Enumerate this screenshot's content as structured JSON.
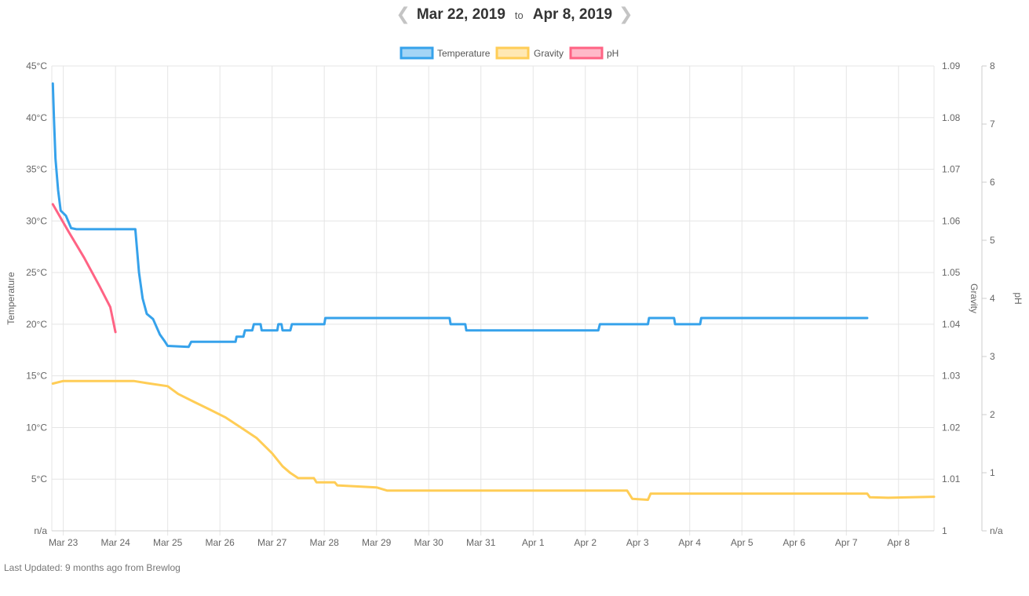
{
  "header": {
    "start_date": "Mar 22, 2019",
    "to_label": "to",
    "end_date": "Apr 8, 2019",
    "prev_icon": "chevron-left-icon",
    "next_icon": "chevron-right-icon"
  },
  "footer": {
    "last_updated": "Last Updated: 9 months ago from Brewlog"
  },
  "colors": {
    "temperature": "#36a2eb",
    "gravity": "#ffcd56",
    "ph": "#ff6384",
    "grid": "#e5e5e5"
  },
  "chart_data": {
    "type": "line",
    "legend": [
      "Temperature",
      "Gravity",
      "pH"
    ],
    "x_ticks": [
      {
        "label": "Mar 23",
        "day": 1
      },
      {
        "label": "Mar 24",
        "day": 2
      },
      {
        "label": "Mar 25",
        "day": 3
      },
      {
        "label": "Mar 26",
        "day": 4
      },
      {
        "label": "Mar 27",
        "day": 5
      },
      {
        "label": "Mar 28",
        "day": 6
      },
      {
        "label": "Mar 29",
        "day": 7
      },
      {
        "label": "Mar 30",
        "day": 8
      },
      {
        "label": "Mar 31",
        "day": 9
      },
      {
        "label": "Apr 1",
        "day": 10
      },
      {
        "label": "Apr 2",
        "day": 11
      },
      {
        "label": "Apr 3",
        "day": 12
      },
      {
        "label": "Apr 4",
        "day": 13
      },
      {
        "label": "Apr 5",
        "day": 14
      },
      {
        "label": "Apr 6",
        "day": 15
      },
      {
        "label": "Apr 7",
        "day": 16
      },
      {
        "label": "Apr 8",
        "day": 17
      }
    ],
    "x_range": [
      0.78,
      17.68
    ],
    "axes": {
      "temperature": {
        "label": "Temperature",
        "min": 0,
        "max": 45,
        "ticks": [
          "n/a",
          "5°C",
          "10°C",
          "15°C",
          "20°C",
          "25°C",
          "30°C",
          "35°C",
          "40°C",
          "45°C"
        ]
      },
      "gravity": {
        "label": "Gravity",
        "min": 1.0,
        "max": 1.09,
        "ticks": [
          "1",
          "1.01",
          "1.02",
          "1.03",
          "1.04",
          "1.05",
          "1.06",
          "1.07",
          "1.08",
          "1.09"
        ]
      },
      "ph": {
        "label": "pH",
        "min": 0,
        "max": 8,
        "ticks": [
          "n/a",
          "1",
          "2",
          "3",
          "4",
          "5",
          "6",
          "7",
          "8"
        ]
      }
    },
    "series": [
      {
        "name": "Temperature",
        "axis": "temperature",
        "points": [
          [
            0.8,
            43.3
          ],
          [
            0.82,
            40
          ],
          [
            0.85,
            36
          ],
          [
            0.9,
            33
          ],
          [
            0.95,
            31
          ],
          [
            1.05,
            30.5
          ],
          [
            1.15,
            29.3
          ],
          [
            1.25,
            29.2
          ],
          [
            2.0,
            29.2
          ],
          [
            2.38,
            29.2
          ],
          [
            2.45,
            25
          ],
          [
            2.52,
            22.5
          ],
          [
            2.6,
            21
          ],
          [
            2.72,
            20.5
          ],
          [
            2.85,
            19
          ],
          [
            2.95,
            18.3
          ],
          [
            3.0,
            17.9
          ],
          [
            3.4,
            17.8
          ],
          [
            3.45,
            18.3
          ],
          [
            4.3,
            18.3
          ],
          [
            4.32,
            18.8
          ],
          [
            4.45,
            18.8
          ],
          [
            4.48,
            19.4
          ],
          [
            4.62,
            19.4
          ],
          [
            4.65,
            20
          ],
          [
            4.78,
            20
          ],
          [
            4.8,
            19.4
          ],
          [
            5.1,
            19.4
          ],
          [
            5.12,
            20
          ],
          [
            5.18,
            20
          ],
          [
            5.2,
            19.4
          ],
          [
            5.35,
            19.4
          ],
          [
            5.38,
            20
          ],
          [
            6.0,
            20
          ],
          [
            6.02,
            20.6
          ],
          [
            8.4,
            20.6
          ],
          [
            8.42,
            20
          ],
          [
            8.7,
            20
          ],
          [
            8.72,
            19.4
          ],
          [
            11.25,
            19.4
          ],
          [
            11.28,
            20
          ],
          [
            12.2,
            20
          ],
          [
            12.22,
            20.6
          ],
          [
            12.7,
            20.6
          ],
          [
            12.72,
            20
          ],
          [
            13.2,
            20
          ],
          [
            13.22,
            20.6
          ],
          [
            16.4,
            20.6
          ]
        ]
      },
      {
        "name": "Gravity",
        "axis": "gravity",
        "points": [
          [
            0.8,
            1.0285
          ],
          [
            1.0,
            1.029
          ],
          [
            2.35,
            1.029
          ],
          [
            2.6,
            1.0286
          ],
          [
            3.0,
            1.028
          ],
          [
            3.2,
            1.0265
          ],
          [
            3.5,
            1.025
          ],
          [
            3.8,
            1.0235
          ],
          [
            4.1,
            1.022
          ],
          [
            4.4,
            1.02
          ],
          [
            4.7,
            1.018
          ],
          [
            5.0,
            1.015
          ],
          [
            5.2,
            1.0125
          ],
          [
            5.35,
            1.0112
          ],
          [
            5.5,
            1.0102
          ],
          [
            5.8,
            1.0102
          ],
          [
            5.85,
            1.0094
          ],
          [
            6.2,
            1.0094
          ],
          [
            6.25,
            1.0088
          ],
          [
            7.0,
            1.0084
          ],
          [
            7.2,
            1.0078
          ],
          [
            11.8,
            1.0078
          ],
          [
            11.9,
            1.0062
          ],
          [
            12.2,
            1.006
          ],
          [
            12.25,
            1.0072
          ],
          [
            16.4,
            1.0072
          ],
          [
            16.45,
            1.0065
          ],
          [
            16.8,
            1.0064
          ],
          [
            17.68,
            1.0066
          ]
        ]
      },
      {
        "name": "pH",
        "axis": "ph",
        "points": [
          [
            0.8,
            5.62
          ],
          [
            1.1,
            5.15
          ],
          [
            1.4,
            4.7
          ],
          [
            1.7,
            4.2
          ],
          [
            1.9,
            3.85
          ],
          [
            2.0,
            3.42
          ]
        ]
      }
    ]
  }
}
